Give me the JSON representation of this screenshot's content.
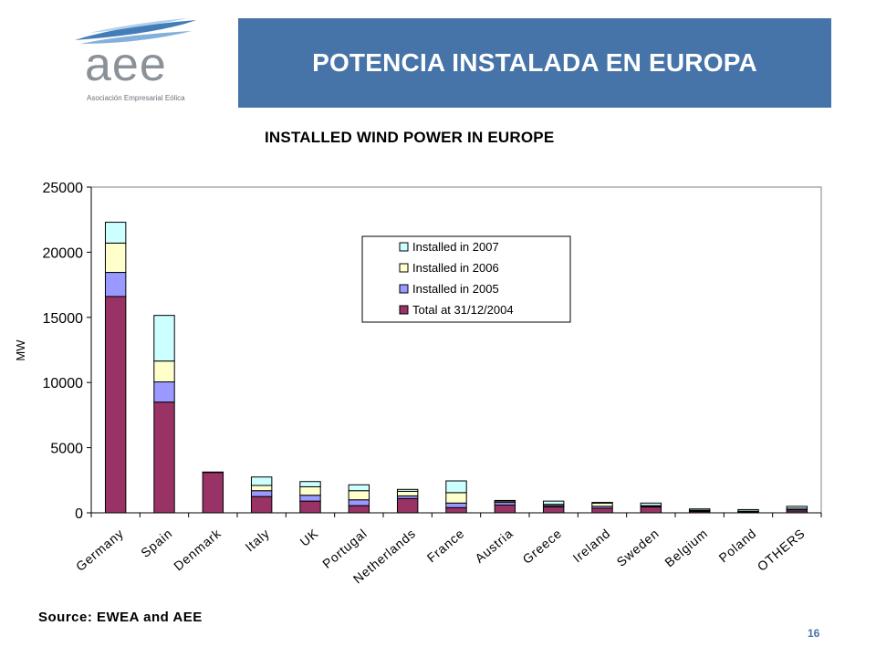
{
  "logo": {
    "text": "aee",
    "subtitle": "Asociación Empresarial Eólica"
  },
  "header": {
    "title": "POTENCIA INSTALADA EN EUROPA"
  },
  "footer": {
    "source": "Source: EWEA and AEE",
    "page_number": "16"
  },
  "colors": {
    "header_bg": "#4774a8",
    "series": [
      "#993366",
      "#9999ff",
      "#ffffcc",
      "#ccffff"
    ]
  },
  "chart_data": {
    "type": "bar",
    "stacked": true,
    "title": "INSTALLED WIND POWER IN EUROPE",
    "xlabel": "",
    "ylabel": "MW",
    "ylim": [
      0,
      25000
    ],
    "yticks": [
      0,
      5000,
      10000,
      15000,
      20000,
      25000
    ],
    "grid": false,
    "legend_position": "top-right",
    "categories": [
      "Germany",
      "Spain",
      "Denmark",
      "Italy",
      "UK",
      "Portugal",
      "Netherlands",
      "France",
      "Austria",
      "Greece",
      "Ireland",
      "Sweden",
      "Belgium",
      "Poland",
      "OTHERS"
    ],
    "series": [
      {
        "name": "Total at 31/12/2004",
        "color": "#993366",
        "values": [
          16600,
          8500,
          3100,
          1250,
          900,
          550,
          1100,
          400,
          600,
          450,
          350,
          450,
          100,
          60,
          150
        ]
      },
      {
        "name": "Installed in  2005",
        "color": "#9999ff",
        "values": [
          1850,
          1550,
          10,
          450,
          450,
          450,
          200,
          350,
          200,
          100,
          150,
          50,
          50,
          20,
          100
        ]
      },
      {
        "name": "Installed in 2006",
        "color": "#ffffcc",
        "values": [
          2250,
          1600,
          10,
          400,
          650,
          700,
          350,
          800,
          100,
          100,
          250,
          50,
          50,
          50,
          100
        ]
      },
      {
        "name": "Installed in 2007",
        "color": "#ccffff",
        "values": [
          1600,
          3500,
          10,
          650,
          400,
          450,
          150,
          900,
          50,
          250,
          50,
          200,
          100,
          120,
          150
        ]
      }
    ]
  }
}
